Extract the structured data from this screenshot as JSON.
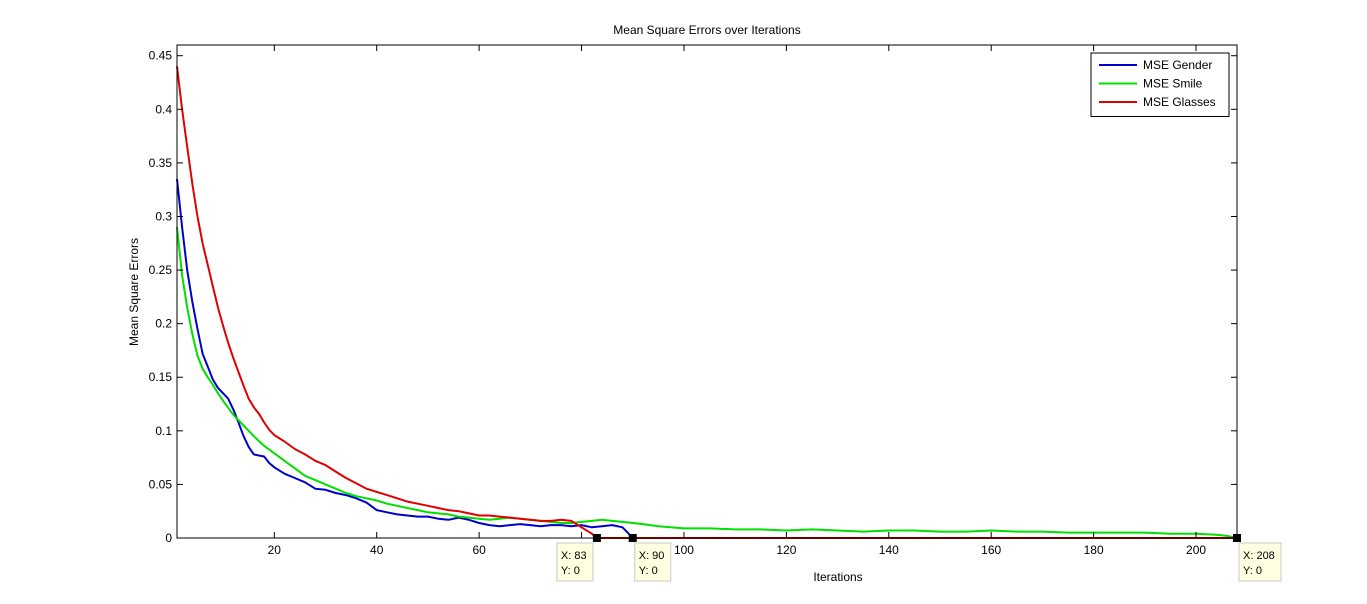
{
  "chart_data": {
    "type": "line",
    "title": "Mean Square Errors over Iterations",
    "xlabel": "Iterations",
    "ylabel": "Mean Square Errors",
    "xlim": [
      1,
      208
    ],
    "ylim": [
      0,
      0.46
    ],
    "x_ticks": [
      20,
      40,
      60,
      80,
      100,
      120,
      140,
      160,
      180,
      200
    ],
    "y_ticks": [
      0,
      0.05,
      0.1,
      0.15,
      0.2,
      0.25,
      0.3,
      0.35,
      0.4,
      0.45
    ],
    "grid": false,
    "legend_position": "top-right",
    "series": [
      {
        "name": "MSE Gender",
        "color": "#0000cc",
        "points": [
          [
            1,
            0.335
          ],
          [
            2,
            0.29
          ],
          [
            3,
            0.25
          ],
          [
            4,
            0.22
          ],
          [
            5,
            0.195
          ],
          [
            6,
            0.172
          ],
          [
            7,
            0.16
          ],
          [
            8,
            0.148
          ],
          [
            9,
            0.14
          ],
          [
            10,
            0.135
          ],
          [
            11,
            0.13
          ],
          [
            12,
            0.12
          ],
          [
            13,
            0.108
          ],
          [
            14,
            0.095
          ],
          [
            15,
            0.085
          ],
          [
            16,
            0.078
          ],
          [
            17,
            0.077
          ],
          [
            18,
            0.076
          ],
          [
            19,
            0.07
          ],
          [
            20,
            0.066
          ],
          [
            22,
            0.06
          ],
          [
            24,
            0.056
          ],
          [
            26,
            0.052
          ],
          [
            28,
            0.046
          ],
          [
            30,
            0.045
          ],
          [
            32,
            0.042
          ],
          [
            34,
            0.04
          ],
          [
            36,
            0.037
          ],
          [
            38,
            0.033
          ],
          [
            40,
            0.026
          ],
          [
            42,
            0.024
          ],
          [
            44,
            0.022
          ],
          [
            46,
            0.021
          ],
          [
            48,
            0.02
          ],
          [
            50,
            0.02
          ],
          [
            52,
            0.018
          ],
          [
            54,
            0.017
          ],
          [
            56,
            0.019
          ],
          [
            58,
            0.017
          ],
          [
            60,
            0.014
          ],
          [
            62,
            0.012
          ],
          [
            64,
            0.011
          ],
          [
            66,
            0.012
          ],
          [
            68,
            0.013
          ],
          [
            70,
            0.012
          ],
          [
            72,
            0.011
          ],
          [
            74,
            0.012
          ],
          [
            76,
            0.012
          ],
          [
            78,
            0.011
          ],
          [
            80,
            0.012
          ],
          [
            82,
            0.01
          ],
          [
            84,
            0.011
          ],
          [
            86,
            0.012
          ],
          [
            88,
            0.01
          ],
          [
            89,
            0.005
          ],
          [
            90,
            0.0
          ]
        ]
      },
      {
        "name": "MSE Smile",
        "color": "#00e000",
        "points": [
          [
            1,
            0.29
          ],
          [
            2,
            0.245
          ],
          [
            3,
            0.215
          ],
          [
            4,
            0.19
          ],
          [
            5,
            0.17
          ],
          [
            6,
            0.158
          ],
          [
            7,
            0.15
          ],
          [
            8,
            0.143
          ],
          [
            9,
            0.135
          ],
          [
            10,
            0.128
          ],
          [
            12,
            0.115
          ],
          [
            14,
            0.105
          ],
          [
            16,
            0.095
          ],
          [
            18,
            0.086
          ],
          [
            20,
            0.079
          ],
          [
            22,
            0.072
          ],
          [
            24,
            0.065
          ],
          [
            26,
            0.058
          ],
          [
            28,
            0.054
          ],
          [
            30,
            0.05
          ],
          [
            32,
            0.046
          ],
          [
            34,
            0.042
          ],
          [
            36,
            0.039
          ],
          [
            38,
            0.037
          ],
          [
            40,
            0.035
          ],
          [
            42,
            0.032
          ],
          [
            44,
            0.03
          ],
          [
            46,
            0.028
          ],
          [
            48,
            0.026
          ],
          [
            50,
            0.024
          ],
          [
            52,
            0.023
          ],
          [
            54,
            0.022
          ],
          [
            56,
            0.02
          ],
          [
            58,
            0.019
          ],
          [
            60,
            0.018
          ],
          [
            62,
            0.017
          ],
          [
            64,
            0.018
          ],
          [
            66,
            0.019
          ],
          [
            68,
            0.018
          ],
          [
            70,
            0.017
          ],
          [
            72,
            0.016
          ],
          [
            74,
            0.015
          ],
          [
            76,
            0.014
          ],
          [
            78,
            0.014
          ],
          [
            80,
            0.015
          ],
          [
            82,
            0.016
          ],
          [
            84,
            0.017
          ],
          [
            86,
            0.016
          ],
          [
            88,
            0.015
          ],
          [
            90,
            0.014
          ],
          [
            92,
            0.013
          ],
          [
            95,
            0.011
          ],
          [
            100,
            0.009
          ],
          [
            105,
            0.009
          ],
          [
            110,
            0.008
          ],
          [
            115,
            0.008
          ],
          [
            120,
            0.007
          ],
          [
            125,
            0.008
          ],
          [
            130,
            0.007
          ],
          [
            135,
            0.006
          ],
          [
            140,
            0.007
          ],
          [
            145,
            0.007
          ],
          [
            150,
            0.006
          ],
          [
            155,
            0.006
          ],
          [
            160,
            0.007
          ],
          [
            165,
            0.006
          ],
          [
            170,
            0.006
          ],
          [
            175,
            0.005
          ],
          [
            180,
            0.005
          ],
          [
            185,
            0.005
          ],
          [
            190,
            0.005
          ],
          [
            195,
            0.004
          ],
          [
            200,
            0.004
          ],
          [
            204,
            0.003
          ],
          [
            206,
            0.002
          ],
          [
            208,
            0.0
          ]
        ]
      },
      {
        "name": "MSE Glasses",
        "color": "#e00000",
        "points": [
          [
            1,
            0.44
          ],
          [
            2,
            0.4
          ],
          [
            3,
            0.365
          ],
          [
            4,
            0.33
          ],
          [
            5,
            0.3
          ],
          [
            6,
            0.275
          ],
          [
            7,
            0.255
          ],
          [
            8,
            0.235
          ],
          [
            9,
            0.215
          ],
          [
            10,
            0.198
          ],
          [
            11,
            0.182
          ],
          [
            12,
            0.168
          ],
          [
            13,
            0.155
          ],
          [
            14,
            0.142
          ],
          [
            15,
            0.13
          ],
          [
            16,
            0.122
          ],
          [
            17,
            0.116
          ],
          [
            18,
            0.108
          ],
          [
            19,
            0.101
          ],
          [
            20,
            0.096
          ],
          [
            22,
            0.09
          ],
          [
            24,
            0.083
          ],
          [
            26,
            0.078
          ],
          [
            28,
            0.072
          ],
          [
            30,
            0.068
          ],
          [
            32,
            0.062
          ],
          [
            34,
            0.056
          ],
          [
            36,
            0.051
          ],
          [
            38,
            0.046
          ],
          [
            40,
            0.043
          ],
          [
            42,
            0.04
          ],
          [
            44,
            0.037
          ],
          [
            46,
            0.034
          ],
          [
            48,
            0.032
          ],
          [
            50,
            0.03
          ],
          [
            52,
            0.028
          ],
          [
            54,
            0.026
          ],
          [
            56,
            0.025
          ],
          [
            58,
            0.023
          ],
          [
            60,
            0.021
          ],
          [
            62,
            0.021
          ],
          [
            64,
            0.02
          ],
          [
            66,
            0.019
          ],
          [
            68,
            0.018
          ],
          [
            70,
            0.017
          ],
          [
            72,
            0.016
          ],
          [
            74,
            0.016
          ],
          [
            76,
            0.017
          ],
          [
            78,
            0.016
          ],
          [
            80,
            0.01
          ],
          [
            82,
            0.004
          ],
          [
            83,
            0.0
          ],
          [
            208,
            0.0
          ]
        ]
      }
    ],
    "datatips": [
      {
        "x": 83,
        "y": 0,
        "x_text": "X: 83",
        "y_text": "Y: 0",
        "side": "left"
      },
      {
        "x": 90,
        "y": 0,
        "x_text": "X: 90",
        "y_text": "Y: 0",
        "side": "right"
      },
      {
        "x": 208,
        "y": 0,
        "x_text": "X: 208",
        "y_text": "Y: 0",
        "side": "right"
      }
    ]
  }
}
